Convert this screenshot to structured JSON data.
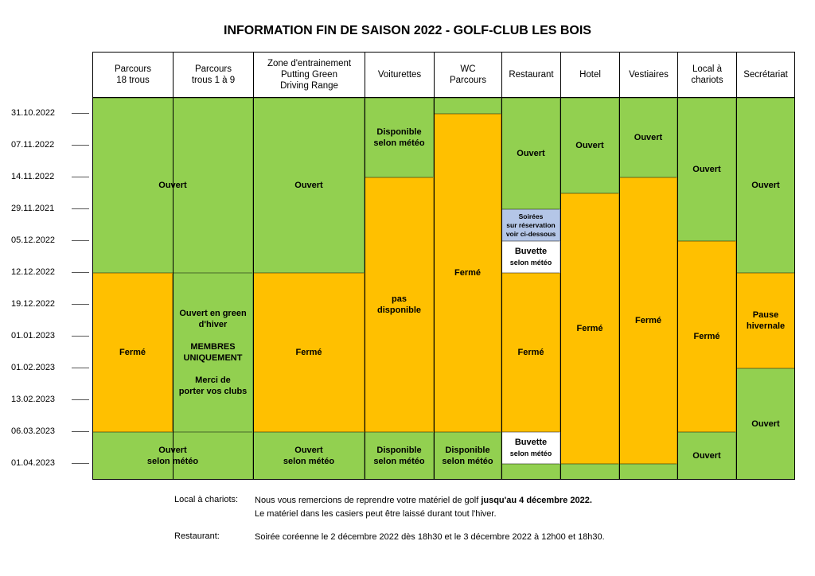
{
  "title": "INFORMATION FIN DE SAISON 2022 - GOLF-CLUB LES BOIS",
  "columns": [
    "Parcours\n18 trous",
    "Parcours\ntrous 1 à 9",
    "Zone d'entrainement\nPutting Green\nDriving Range",
    "Voiturettes",
    "WC\nParcours",
    "Restaurant",
    "Hotel",
    "Vestiaires",
    "Local à\nchariots",
    "Secrétariat"
  ],
  "dates": [
    "31.10.2022",
    "07.11.2022",
    "14.11.2022",
    "29.11.2021",
    "05.12.2022",
    "12.12.2022",
    "19.12.2022",
    "01.01.2023",
    "01.02.2023",
    "13.02.2023",
    "06.03.2023",
    "01.04.2023"
  ],
  "labels": {
    "ouvert": "Ouvert",
    "ferme": "Fermé",
    "ouvert_meteo": "Ouvert\nselon météo",
    "disponible_meteo": "Disponible\nselon météo",
    "pas_disponible": "pas\ndisponible",
    "hiver_membres": "Ouvert en green\nd'hiver\n\nMEMBRES\nUNIQUEMENT\n\nMerci de\nporter vos clubs",
    "soirees": "Soirées\nsur réservation\nvoir ci-dessous",
    "buvette": "Buvette",
    "selon_meteo": "selon météo",
    "pause": "Pause\nhivernale"
  },
  "colors": {
    "green": "#92d050",
    "orange": "#ffc000",
    "blue": "#b4c6e7"
  },
  "notes": {
    "chariots_label": "Local à chariots:",
    "chariots_line1_a": "Nous vous remercions de reprendre votre matériel de golf ",
    "chariots_line1_b": "jusqu'au 4 décembre 2022.",
    "chariots_line2": "Le matériel dans les casiers peut être laissé durant tout l'hiver.",
    "restaurant_label": "Restaurant:",
    "restaurant_text": "Soirée coréenne le 2 décembre 2022 dès 18h30 et le 3 décembre 2022 à 12h00 et 18h30."
  }
}
